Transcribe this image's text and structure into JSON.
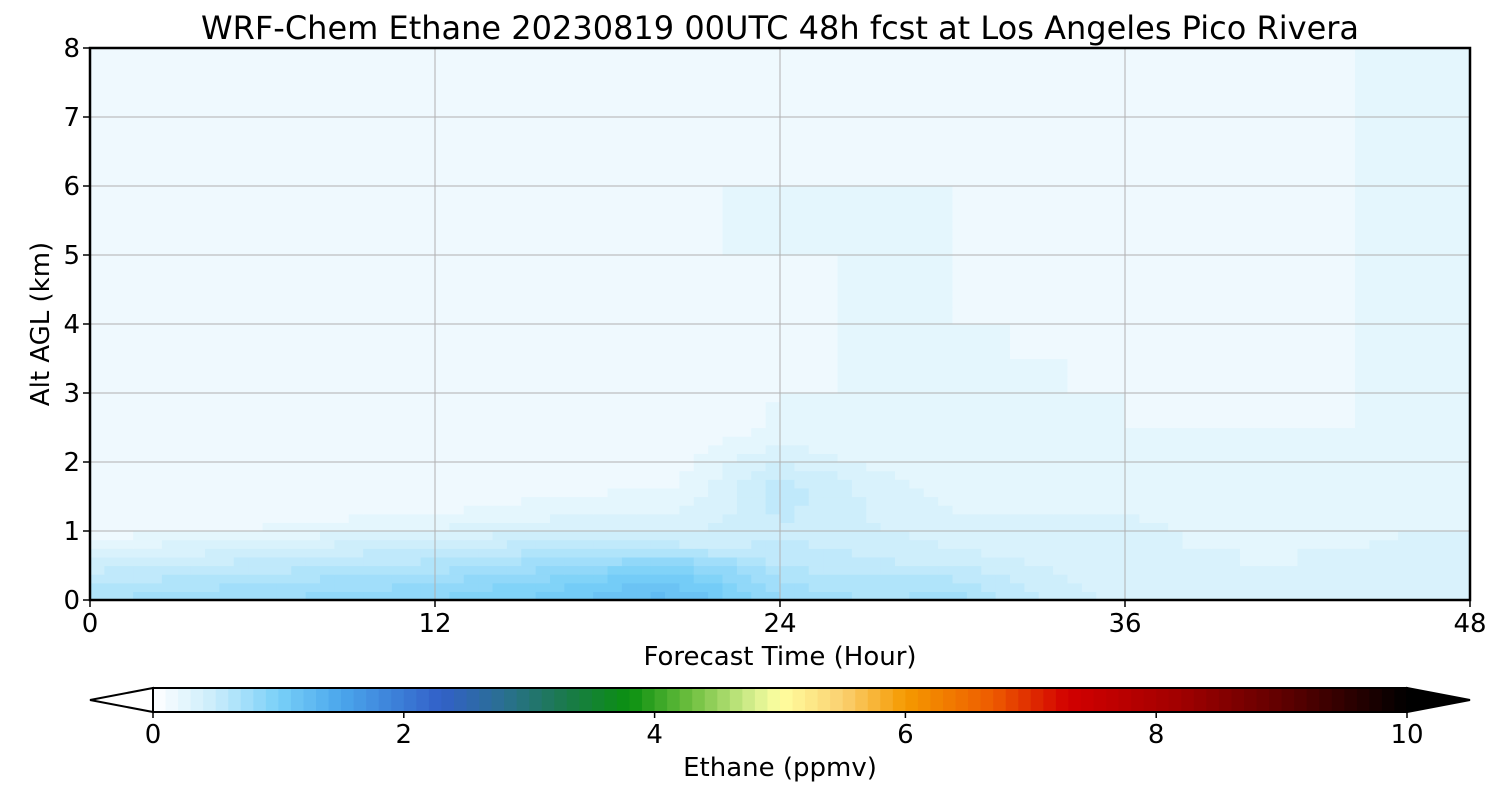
{
  "chart_data": {
    "type": "heatmap",
    "title": "WRF-Chem Ethane  20230819 00UTC 48h fcst at Los Angeles Pico Rivera",
    "xlabel": "Forecast Time (Hour)",
    "ylabel": "Alt AGL (km)",
    "xlim": [
      0,
      48
    ],
    "ylim": [
      0,
      8
    ],
    "xticks": [
      "0",
      "12",
      "24",
      "36",
      "48"
    ],
    "yticks": [
      "0",
      "1",
      "2",
      "3",
      "4",
      "5",
      "6",
      "7",
      "8"
    ],
    "grid": true,
    "colorbar": {
      "label": "Ethane  (ppmv)",
      "min": 0,
      "max": 10,
      "ticks": [
        "0",
        "2",
        "4",
        "6",
        "8",
        "10"
      ],
      "extend": "both",
      "stops": [
        {
          "v": 0.0,
          "c": "#ffffff"
        },
        {
          "v": 0.5,
          "c": "#c8ecfb"
        },
        {
          "v": 1.0,
          "c": "#79d0f8"
        },
        {
          "v": 1.5,
          "c": "#4aa6ec"
        },
        {
          "v": 2.3,
          "c": "#3260c8"
        },
        {
          "v": 2.8,
          "c": "#2a7090"
        },
        {
          "v": 3.3,
          "c": "#1a7a4a"
        },
        {
          "v": 3.8,
          "c": "#0a9010"
        },
        {
          "v": 4.3,
          "c": "#70c040"
        },
        {
          "v": 4.8,
          "c": "#d8f090"
        },
        {
          "v": 5.0,
          "c": "#ffffa0"
        },
        {
          "v": 5.5,
          "c": "#fbd070"
        },
        {
          "v": 6.0,
          "c": "#f59a00"
        },
        {
          "v": 6.7,
          "c": "#ed5a00"
        },
        {
          "v": 7.3,
          "c": "#d20000"
        },
        {
          "v": 8.2,
          "c": "#a00000"
        },
        {
          "v": 9.0,
          "c": "#600000"
        },
        {
          "v": 10.0,
          "c": "#000000"
        }
      ]
    },
    "field": {
      "x": [
        0,
        3,
        6,
        9,
        12,
        15,
        18,
        20,
        22,
        24,
        26,
        28,
        30,
        32,
        34,
        36,
        38,
        40,
        42,
        44,
        46,
        48
      ],
      "y": [
        0,
        0.25,
        0.5,
        0.75,
        1.0,
        1.25,
        1.5,
        1.75,
        2.0,
        2.5,
        3.0,
        3.5,
        4.0,
        5.0,
        6.0,
        7.0,
        8.0
      ],
      "values": [
        [
          0.7,
          0.75,
          0.8,
          0.85,
          0.9,
          1.0,
          1.15,
          1.25,
          1.05,
          0.8,
          0.72,
          0.7,
          0.75,
          0.6,
          0.45,
          0.38,
          0.35,
          0.35,
          0.33,
          0.35,
          0.4,
          0.4
        ],
        [
          0.6,
          0.65,
          0.7,
          0.75,
          0.8,
          0.9,
          1.05,
          1.15,
          0.95,
          0.72,
          0.65,
          0.65,
          0.65,
          0.5,
          0.4,
          0.35,
          0.35,
          0.33,
          0.33,
          0.35,
          0.38,
          0.38
        ],
        [
          0.45,
          0.5,
          0.55,
          0.6,
          0.65,
          0.75,
          0.85,
          0.95,
          0.8,
          0.6,
          0.55,
          0.52,
          0.5,
          0.45,
          0.35,
          0.32,
          0.32,
          0.3,
          0.3,
          0.32,
          0.35,
          0.35
        ],
        [
          0.28,
          0.35,
          0.4,
          0.45,
          0.5,
          0.55,
          0.6,
          0.55,
          0.5,
          0.52,
          0.5,
          0.45,
          0.4,
          0.35,
          0.32,
          0.32,
          0.3,
          0.3,
          0.3,
          0.3,
          0.32,
          0.32
        ],
        [
          0.15,
          0.18,
          0.22,
          0.28,
          0.32,
          0.38,
          0.4,
          0.38,
          0.42,
          0.5,
          0.45,
          0.4,
          0.35,
          0.32,
          0.32,
          0.32,
          0.3,
          0.28,
          0.28,
          0.28,
          0.3,
          0.3
        ],
        [
          0.1,
          0.12,
          0.14,
          0.17,
          0.2,
          0.25,
          0.3,
          0.3,
          0.38,
          0.52,
          0.45,
          0.35,
          0.3,
          0.3,
          0.3,
          0.3,
          0.28,
          0.25,
          0.25,
          0.25,
          0.28,
          0.28
        ],
        [
          0.1,
          0.1,
          0.1,
          0.12,
          0.14,
          0.18,
          0.22,
          0.22,
          0.35,
          0.55,
          0.45,
          0.32,
          0.28,
          0.28,
          0.28,
          0.28,
          0.28,
          0.25,
          0.25,
          0.25,
          0.25,
          0.25
        ],
        [
          0.1,
          0.1,
          0.1,
          0.1,
          0.1,
          0.12,
          0.14,
          0.15,
          0.32,
          0.52,
          0.42,
          0.3,
          0.26,
          0.26,
          0.26,
          0.28,
          0.26,
          0.25,
          0.22,
          0.22,
          0.24,
          0.24
        ],
        [
          0.1,
          0.1,
          0.1,
          0.1,
          0.1,
          0.1,
          0.12,
          0.12,
          0.28,
          0.4,
          0.32,
          0.26,
          0.24,
          0.22,
          0.22,
          0.22,
          0.22,
          0.2,
          0.2,
          0.2,
          0.22,
          0.22
        ],
        [
          0.1,
          0.1,
          0.1,
          0.1,
          0.1,
          0.1,
          0.1,
          0.1,
          0.15,
          0.22,
          0.2,
          0.22,
          0.22,
          0.2,
          0.2,
          0.2,
          0.2,
          0.2,
          0.2,
          0.2,
          0.2,
          0.2
        ],
        [
          0.1,
          0.1,
          0.1,
          0.1,
          0.1,
          0.1,
          0.1,
          0.1,
          0.15,
          0.2,
          0.2,
          0.2,
          0.22,
          0.2,
          0.2,
          0.2,
          0.18,
          0.18,
          0.18,
          0.2,
          0.2,
          0.2
        ],
        [
          0.1,
          0.1,
          0.1,
          0.1,
          0.1,
          0.1,
          0.1,
          0.1,
          0.2,
          0.18,
          0.2,
          0.2,
          0.2,
          0.2,
          0.2,
          0.18,
          0.16,
          0.16,
          0.16,
          0.2,
          0.2,
          0.2
        ],
        [
          0.1,
          0.1,
          0.1,
          0.1,
          0.1,
          0.1,
          0.1,
          0.15,
          0.2,
          0.16,
          0.2,
          0.2,
          0.2,
          0.2,
          0.18,
          0.16,
          0.14,
          0.14,
          0.14,
          0.2,
          0.2,
          0.2
        ],
        [
          0.1,
          0.1,
          0.1,
          0.1,
          0.1,
          0.1,
          0.1,
          0.18,
          0.2,
          0.2,
          0.2,
          0.2,
          0.2,
          0.18,
          0.16,
          0.14,
          0.14,
          0.14,
          0.16,
          0.2,
          0.2,
          0.2
        ],
        [
          0.1,
          0.1,
          0.1,
          0.1,
          0.1,
          0.1,
          0.1,
          0.18,
          0.2,
          0.2,
          0.2,
          0.2,
          0.2,
          0.18,
          0.16,
          0.14,
          0.14,
          0.14,
          0.16,
          0.2,
          0.2,
          0.2
        ],
        [
          0.1,
          0.1,
          0.1,
          0.1,
          0.1,
          0.1,
          0.1,
          0.15,
          0.16,
          0.16,
          0.16,
          0.2,
          0.18,
          0.15,
          0.14,
          0.12,
          0.12,
          0.14,
          0.16,
          0.2,
          0.2,
          0.2
        ],
        [
          0.1,
          0.1,
          0.1,
          0.1,
          0.1,
          0.1,
          0.1,
          0.12,
          0.14,
          0.14,
          0.16,
          0.2,
          0.16,
          0.14,
          0.12,
          0.12,
          0.12,
          0.14,
          0.16,
          0.2,
          0.2,
          0.2
        ]
      ]
    }
  }
}
